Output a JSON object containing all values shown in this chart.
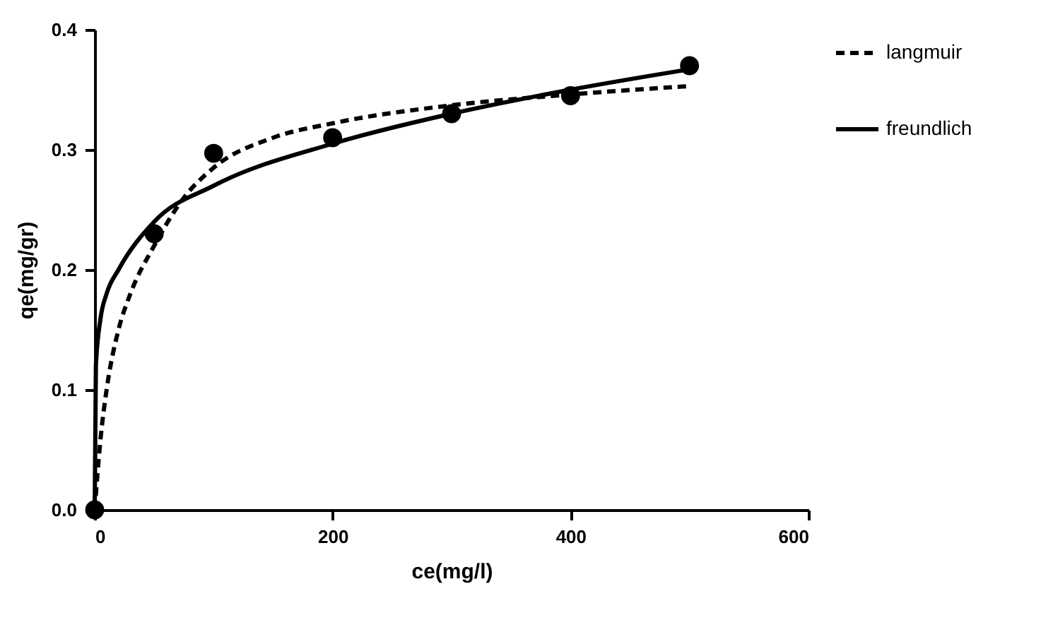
{
  "chart_data": {
    "type": "line",
    "xlabel": "ce(mg/l)",
    "ylabel": "qe(mg/gr)",
    "xlim": [
      0,
      600
    ],
    "xticks": [
      0,
      200,
      400,
      600
    ],
    "ylim": [
      0,
      0.4
    ],
    "yticks": [
      {
        "value": 0,
        "label": "0.0"
      },
      0.1,
      0.2,
      0.3,
      0.4
    ],
    "grid": false,
    "legend": "right",
    "series": [
      {
        "type": "scatter",
        "marker": "circle",
        "color": "#000000",
        "x": [
          0,
          50,
          100,
          200,
          300,
          400,
          500
        ],
        "values": [
          0,
          0.23,
          0.297,
          0.31,
          0.33,
          0.345,
          0.37
        ]
      },
      {
        "name": "langmuir",
        "line_style": "dashed",
        "color": "#000000",
        "x": [
          0,
          5,
          10,
          20,
          30,
          50,
          75,
          100,
          150,
          200,
          300,
          400,
          500
        ],
        "values": [
          0,
          0.06,
          0.1,
          0.15,
          0.18,
          0.22,
          0.26,
          0.285,
          0.31,
          0.322,
          0.337,
          0.346,
          0.353
        ]
      },
      {
        "name": "freundlich",
        "line_style": "solid",
        "color": "#000000",
        "x": [
          0,
          1,
          5,
          10,
          20,
          50,
          100,
          200,
          300,
          400,
          500
        ],
        "values": [
          0,
          0.12,
          0.16,
          0.18,
          0.2,
          0.24,
          0.27,
          0.305,
          0.33,
          0.35,
          0.367
        ]
      }
    ]
  }
}
